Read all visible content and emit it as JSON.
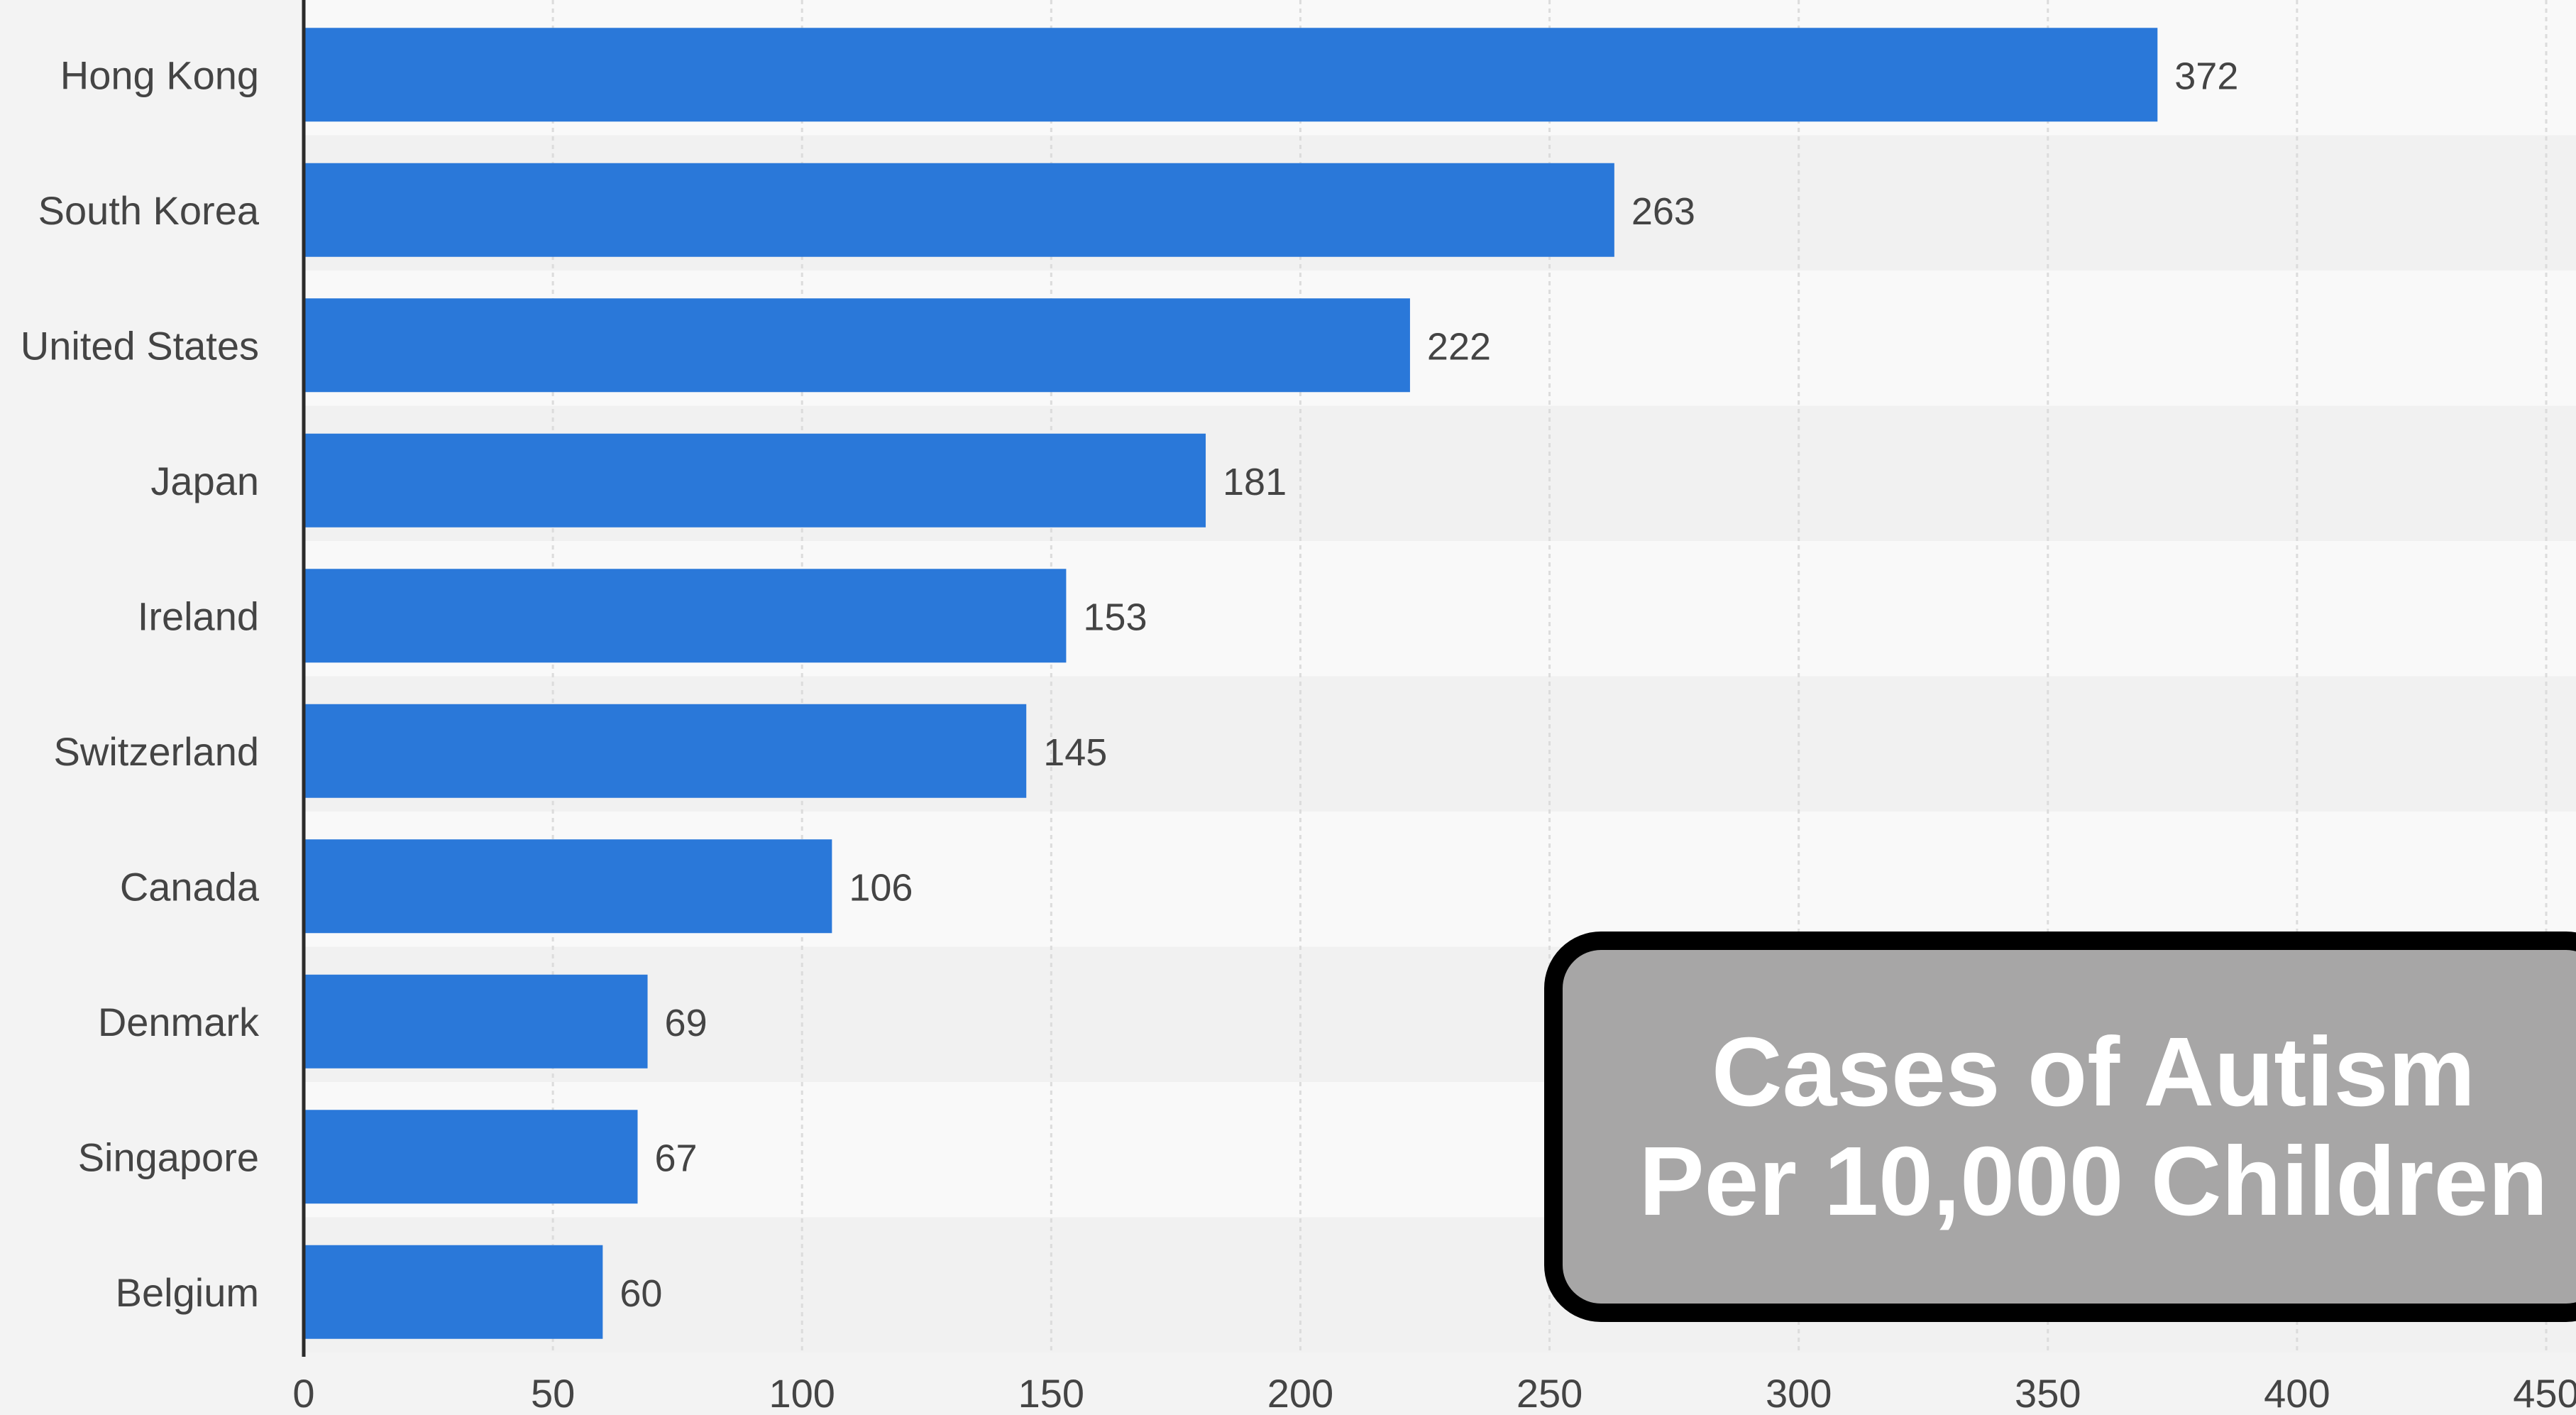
{
  "chart_data": {
    "type": "bar",
    "orientation": "horizontal",
    "categories": [
      "Hong Kong",
      "South Korea",
      "United States",
      "Japan",
      "Ireland",
      "Switzerland",
      "Canada",
      "Denmark",
      "Singapore",
      "Belgium"
    ],
    "values": [
      372,
      263,
      222,
      181,
      153,
      145,
      106,
      69,
      67,
      60
    ],
    "data_labels": [
      "372",
      "263",
      "222",
      "181",
      "153",
      "145",
      "106",
      "69",
      "67",
      "60"
    ],
    "x_ticks": [
      "0",
      "50",
      "100",
      "150",
      "200",
      "250",
      "300",
      "350",
      "400",
      "450"
    ],
    "xlim": [
      0,
      450
    ],
    "grid": true,
    "bar_color": "#2a78d9"
  },
  "overlay": {
    "line1": "Cases of Autism",
    "line2": "Per 10,000 Children"
  },
  "colors": {
    "background": "#f3f3f3",
    "band_light": "#f9f9f9",
    "band_dark": "#f1f1f1",
    "gridline": "#dcdcdc",
    "axis": "#2b2b2b",
    "label_text": "#444444",
    "overlay_fill": "#a7a6a6",
    "overlay_border": "#000000"
  }
}
